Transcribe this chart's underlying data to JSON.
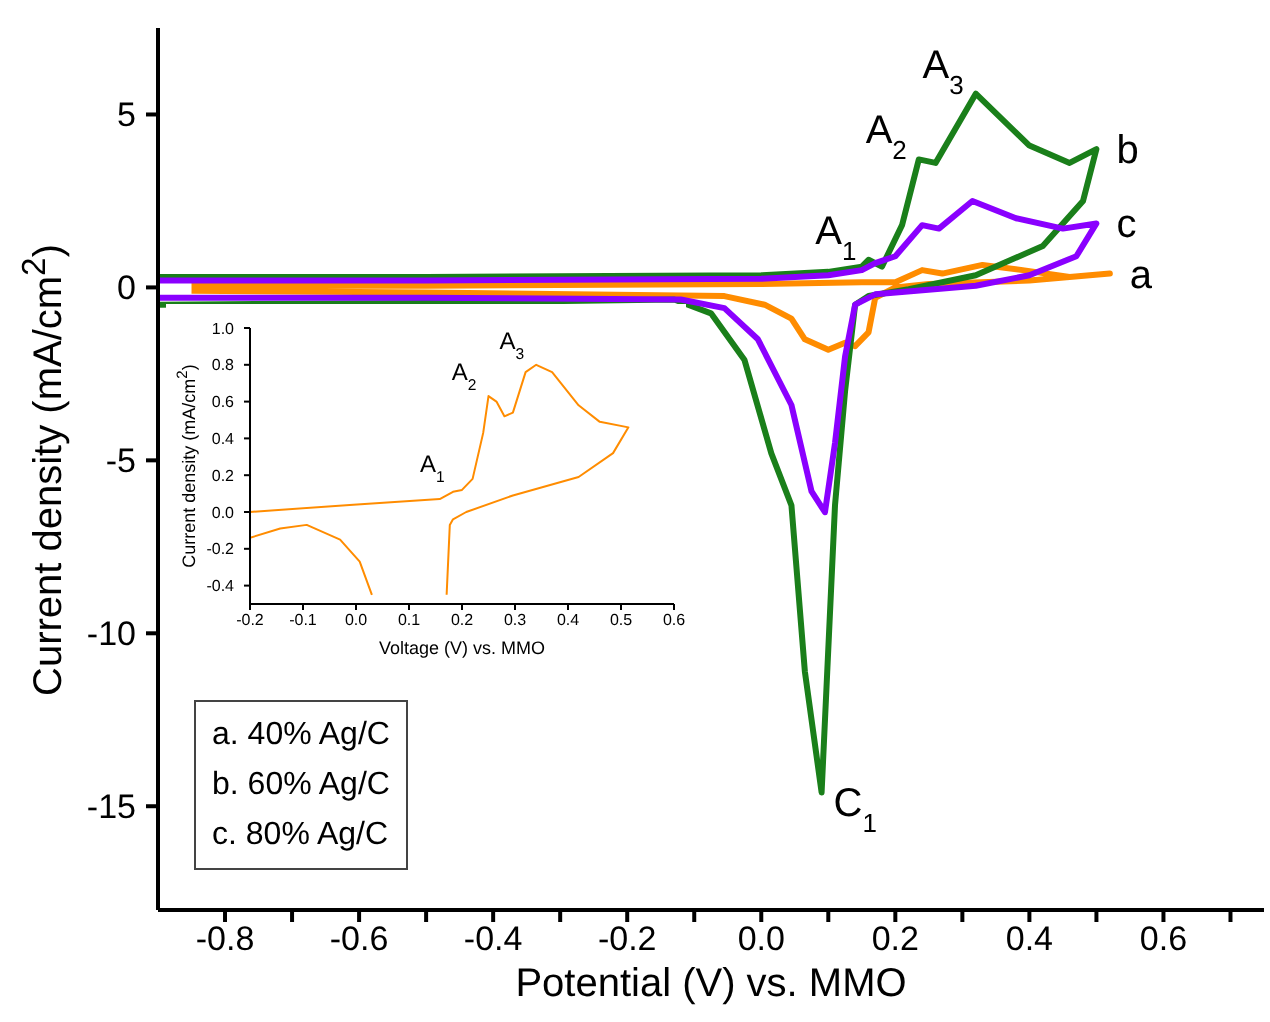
{
  "chart_data": [
    {
      "type": "line",
      "xlabel": "Potential (V) vs. MMO",
      "ylabel": "Current density (mA/cm$^{2}$)",
      "xlim": [
        -0.9,
        0.75
      ],
      "ylim": [
        -18,
        7.5
      ],
      "xticks": [
        {
          "value": -0.8,
          "label": "-0.8"
        },
        {
          "value": -0.7,
          "label": null
        },
        {
          "value": -0.6,
          "label": "-0.6"
        },
        {
          "value": -0.5,
          "label": null
        },
        {
          "value": -0.4,
          "label": "-0.4"
        },
        {
          "value": -0.3,
          "label": null
        },
        {
          "value": -0.2,
          "label": "-0.2"
        },
        {
          "value": -0.1,
          "label": null
        },
        {
          "value": 0,
          "label": "0.0"
        },
        {
          "value": 0.1,
          "label": null
        },
        {
          "value": 0.2,
          "label": "0.2"
        },
        {
          "value": 0.3,
          "label": null
        },
        {
          "value": 0.4,
          "label": "0.4"
        },
        {
          "value": 0.5,
          "label": null
        },
        {
          "value": 0.6,
          "label": "0.6"
        },
        {
          "value": 0.7,
          "label": null
        }
      ],
      "yticks": [
        -15,
        -10,
        -5,
        0,
        5
      ],
      "legend": false,
      "grid": false,
      "series": [
        {
          "name": "a",
          "color": "#ff8c00",
          "x": [
            -0.85,
            -0.5,
            0,
            0.15,
            0.2,
            0.24,
            0.27,
            0.33,
            0.39,
            0.46,
            0.52,
            0.4,
            0.25,
            0.2,
            0.17,
            0.16,
            0.14,
            0.125,
            0.1,
            0.065,
            0.045,
            0.005,
            -0.055,
            -0.5,
            -0.85
          ],
          "values": [
            0.05,
            0.05,
            0.1,
            0.15,
            0.15,
            0.5,
            0.4,
            0.65,
            0.5,
            0.3,
            0.4,
            0.2,
            0.1,
            0,
            -0.3,
            -1.3,
            -1.7,
            -1.6,
            -1.8,
            -1.5,
            -0.9,
            -0.5,
            -0.25,
            -0.15,
            -0.1
          ]
        },
        {
          "name": "b",
          "color": "#1a7f1a",
          "x": [
            -0.9,
            -0.5,
            0,
            0.1,
            0.15,
            0.16,
            0.18,
            0.21,
            0.235,
            0.26,
            0.32,
            0.4,
            0.46,
            0.5,
            0.48,
            0.42,
            0.32,
            0.22,
            0.16,
            0.14,
            0.125,
            0.11,
            0.09,
            0.065,
            0.045,
            0.015,
            -0.025,
            -0.075,
            -0.13,
            -0.5,
            -0.9
          ],
          "values": [
            0.3,
            0.3,
            0.35,
            0.45,
            0.6,
            0.8,
            0.6,
            1.8,
            3.7,
            3.6,
            5.6,
            4.1,
            3.6,
            4,
            2.5,
            1.2,
            0.35,
            -0.05,
            -0.25,
            -0.5,
            -3,
            -6.3,
            -14.6,
            -11.1,
            -6.3,
            -4.8,
            -2.1,
            -0.75,
            -0.35,
            -0.45,
            -0.5
          ]
        },
        {
          "name": "c",
          "color": "#8a00ff",
          "x": [
            -0.9,
            -0.5,
            0,
            0.1,
            0.15,
            0.17,
            0.2,
            0.24,
            0.265,
            0.315,
            0.38,
            0.45,
            0.5,
            0.47,
            0.4,
            0.32,
            0.17,
            0.14,
            0.125,
            0.11,
            0.095,
            0.075,
            0.045,
            -0.005,
            -0.055,
            -0.12,
            -0.5,
            -0.9
          ],
          "values": [
            0.2,
            0.2,
            0.25,
            0.35,
            0.5,
            0.7,
            0.9,
            1.8,
            1.7,
            2.5,
            2,
            1.7,
            1.85,
            0.9,
            0.35,
            0.05,
            -0.2,
            -0.5,
            -2,
            -4.5,
            -6.5,
            -5.9,
            -3.4,
            -1.5,
            -0.6,
            -0.35,
            -0.3,
            -0.3
          ]
        }
      ],
      "annotations": [
        {
          "text": "A$_{1}$",
          "x": 0.16,
          "y": 0.8
        },
        {
          "text": "A$_{2}$",
          "x": 0.235,
          "y": 3.7
        },
        {
          "text": "A$_{3}$",
          "x": 0.32,
          "y": 5.6
        },
        {
          "text": "C$_{1}$",
          "x": 0.09,
          "y": -14.6
        },
        "a. 40% Ag/C",
        "b. 60% Ag/C",
        "c. 80% Ag/C"
      ]
    },
    {
      "type": "line",
      "xlabel": "Voltage (V) vs. MMO",
      "ylabel": "Current density (mA/cm$^{2}$)",
      "xlim": [
        -0.2,
        0.6
      ],
      "ylim": [
        -0.5,
        1.0
      ],
      "xticks": [
        -0.2,
        -0.1,
        {
          "value": 0,
          "label": "0.0"
        },
        0.1,
        0.2,
        0.3,
        0.4,
        0.5,
        0.6
      ],
      "yticks": [
        -0.4,
        -0.2,
        {
          "value": 0,
          "label": "0.0"
        },
        0.2,
        0.4,
        0.6,
        0.8,
        {
          "value": 1,
          "label": "1.0"
        }
      ],
      "legend": false,
      "grid": false,
      "series": [
        {
          "color": "#ff8c00",
          "x": [
            -0.2,
            -0.005,
            0.158,
            0.183,
            0.2,
            0.22,
            0.24,
            0.25,
            0.265,
            0.28,
            0.296,
            0.32,
            0.34,
            0.37,
            0.42,
            0.46,
            0.514,
            0.485,
            0.42,
            0.296,
            0.208,
            0.183,
            0.177,
            0.171,
            0.1,
            0.03,
            0.007,
            -0.03,
            -0.093,
            -0.143,
            -0.2
          ],
          "values": [
            0,
            0.04,
            0.07,
            0.11,
            0.12,
            0.18,
            0.43,
            0.63,
            0.6,
            0.52,
            0.54,
            0.76,
            0.8,
            0.76,
            0.58,
            0.49,
            0.46,
            0.32,
            0.19,
            0.09,
            0,
            -0.04,
            -0.07,
            -0.45,
            null,
            -0.45,
            -0.27,
            -0.15,
            -0.07,
            -0.09,
            -0.14
          ]
        }
      ],
      "annotations": [
        {
          "text": "A$_{1}$",
          "x": 0.19,
          "y": 0.13
        },
        {
          "text": "A$_{2}$",
          "x": 0.25,
          "y": 0.63
        },
        {
          "text": "A$_{3}$",
          "x": 0.34,
          "y": 0.8
        }
      ]
    }
  ]
}
